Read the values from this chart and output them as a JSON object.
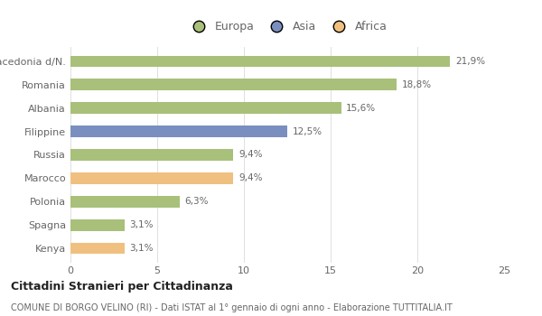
{
  "categories": [
    "Macedonia d/N.",
    "Romania",
    "Albania",
    "Filippine",
    "Russia",
    "Marocco",
    "Polonia",
    "Spagna",
    "Kenya"
  ],
  "values": [
    21.9,
    18.8,
    15.6,
    12.5,
    9.4,
    9.4,
    6.3,
    3.1,
    3.1
  ],
  "colors": [
    "#a8c07a",
    "#a8c07a",
    "#a8c07a",
    "#7a8fbf",
    "#a8c07a",
    "#f0c080",
    "#a8c07a",
    "#a8c07a",
    "#f0c080"
  ],
  "labels": [
    "21,9%",
    "18,8%",
    "15,6%",
    "12,5%",
    "9,4%",
    "9,4%",
    "6,3%",
    "3,1%",
    "3,1%"
  ],
  "legend_labels": [
    "Europa",
    "Asia",
    "Africa"
  ],
  "legend_colors": [
    "#a8c07a",
    "#7a8fbf",
    "#f0c080"
  ],
  "xlim": [
    0,
    25
  ],
  "xticks": [
    0,
    5,
    10,
    15,
    20,
    25
  ],
  "title_bold": "Cittadini Stranieri per Cittadinanza",
  "subtitle": "COMUNE DI BORGO VELINO (RI) - Dati ISTAT al 1° gennaio di ogni anno - Elaborazione TUTTITALIA.IT",
  "background_color": "#ffffff",
  "bar_height": 0.5,
  "label_fontsize": 7.5,
  "tick_label_fontsize": 8,
  "legend_fontsize": 9,
  "title_fontsize": 9,
  "subtitle_fontsize": 7
}
